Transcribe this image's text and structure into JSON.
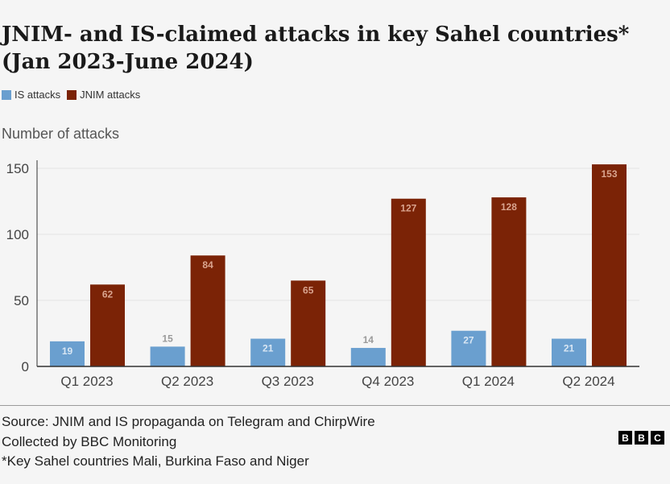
{
  "chart_data": {
    "type": "bar",
    "title": "JNIM- and IS-claimed attacks in key Sahel countries* (Jan 2023-June 2024)",
    "ylabel": "Number of attacks",
    "xlabel": "",
    "categories": [
      "Q1 2023",
      "Q2 2023",
      "Q3 2023",
      "Q4 2023",
      "Q1 2024",
      "Q2 2024"
    ],
    "series": [
      {
        "name": "IS attacks",
        "color": "#6a9fcf",
        "values": [
          19,
          15,
          21,
          14,
          27,
          21
        ]
      },
      {
        "name": "JNIM attacks",
        "color": "#7b2306",
        "values": [
          62,
          84,
          65,
          127,
          128,
          153
        ]
      }
    ],
    "ylim": [
      0,
      150
    ],
    "yticks": [
      0,
      50,
      100,
      150
    ],
    "grid": true,
    "legend_position": "top-left"
  },
  "footer": {
    "source": "Source: JNIM and IS propaganda on Telegram and ChirpWire",
    "collected": "Collected by BBC Monitoring",
    "note": "*Key Sahel countries Mali, Burkina Faso and Niger"
  },
  "logo": {
    "letters": [
      "B",
      "B",
      "C"
    ]
  }
}
